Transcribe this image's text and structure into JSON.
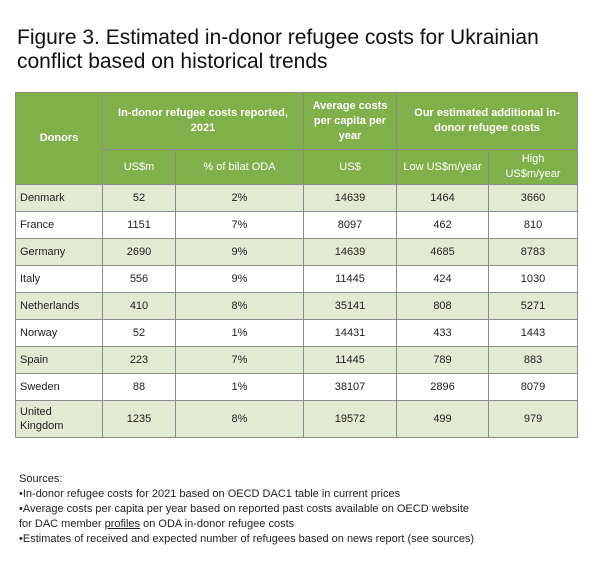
{
  "title": {
    "line1": "Figure 3. Estimated in-donor refugee costs for Ukrainian",
    "line2": "conflict based on historical trends"
  },
  "table": {
    "headers": {
      "donors": "Donors",
      "group_costs": "In-donor refugee costs reported, 2021",
      "group_avg": "Average costs per capita per year",
      "group_est": "Our estimated additional in-donor refugee costs",
      "usdm": "US$m",
      "pct_oda": "% of bilat ODA",
      "usd": "US$",
      "low": "Low US$m/year",
      "high": "High US$m/year"
    },
    "rows": [
      {
        "donor": "Denmark",
        "usdm": "52",
        "pct": "2%",
        "avg": "14639",
        "low": "1464",
        "high": "3660"
      },
      {
        "donor": "France",
        "usdm": "1151",
        "pct": "7%",
        "avg": "8097",
        "low": "462",
        "high": "810"
      },
      {
        "donor": "Germany",
        "usdm": "2690",
        "pct": "9%",
        "avg": "14639",
        "low": "4685",
        "high": "8783"
      },
      {
        "donor": "Italy",
        "usdm": "556",
        "pct": "9%",
        "avg": "11445",
        "low": "424",
        "high": "1030"
      },
      {
        "donor": "Netherlands",
        "usdm": "410",
        "pct": "8%",
        "avg": "35141",
        "low": "808",
        "high": "5271"
      },
      {
        "donor": "Norway",
        "usdm": "52",
        "pct": "1%",
        "avg": "14431",
        "low": "433",
        "high": "1443"
      },
      {
        "donor": "Spain",
        "usdm": "223",
        "pct": "7%",
        "avg": "11445",
        "low": "789",
        "high": "883"
      },
      {
        "donor": "Sweden",
        "usdm": "88",
        "pct": "1%",
        "avg": "38107",
        "low": "2896",
        "high": "8079"
      },
      {
        "donor": "United Kingdom",
        "usdm": "1235",
        "pct": "8%",
        "avg": "19572",
        "low": "499",
        "high": "979"
      }
    ]
  },
  "sources": {
    "heading": "Sources:",
    "item1": "•In-donor refugee costs for 2021 based on OECD DAC1 table in current prices",
    "item2": "•Average costs per capita per year based on reported past costs available on OECD website",
    "item2b_pre": "for DAC member ",
    "item2b_link": "profiles",
    "item2b_post": " on ODA in-donor refugee costs",
    "item3": "•Estimates of received and expected number of refugees based on news report (see sources)"
  },
  "colors": {
    "header_green": "#7fb04a",
    "row_alt": "#e0ebd2"
  }
}
